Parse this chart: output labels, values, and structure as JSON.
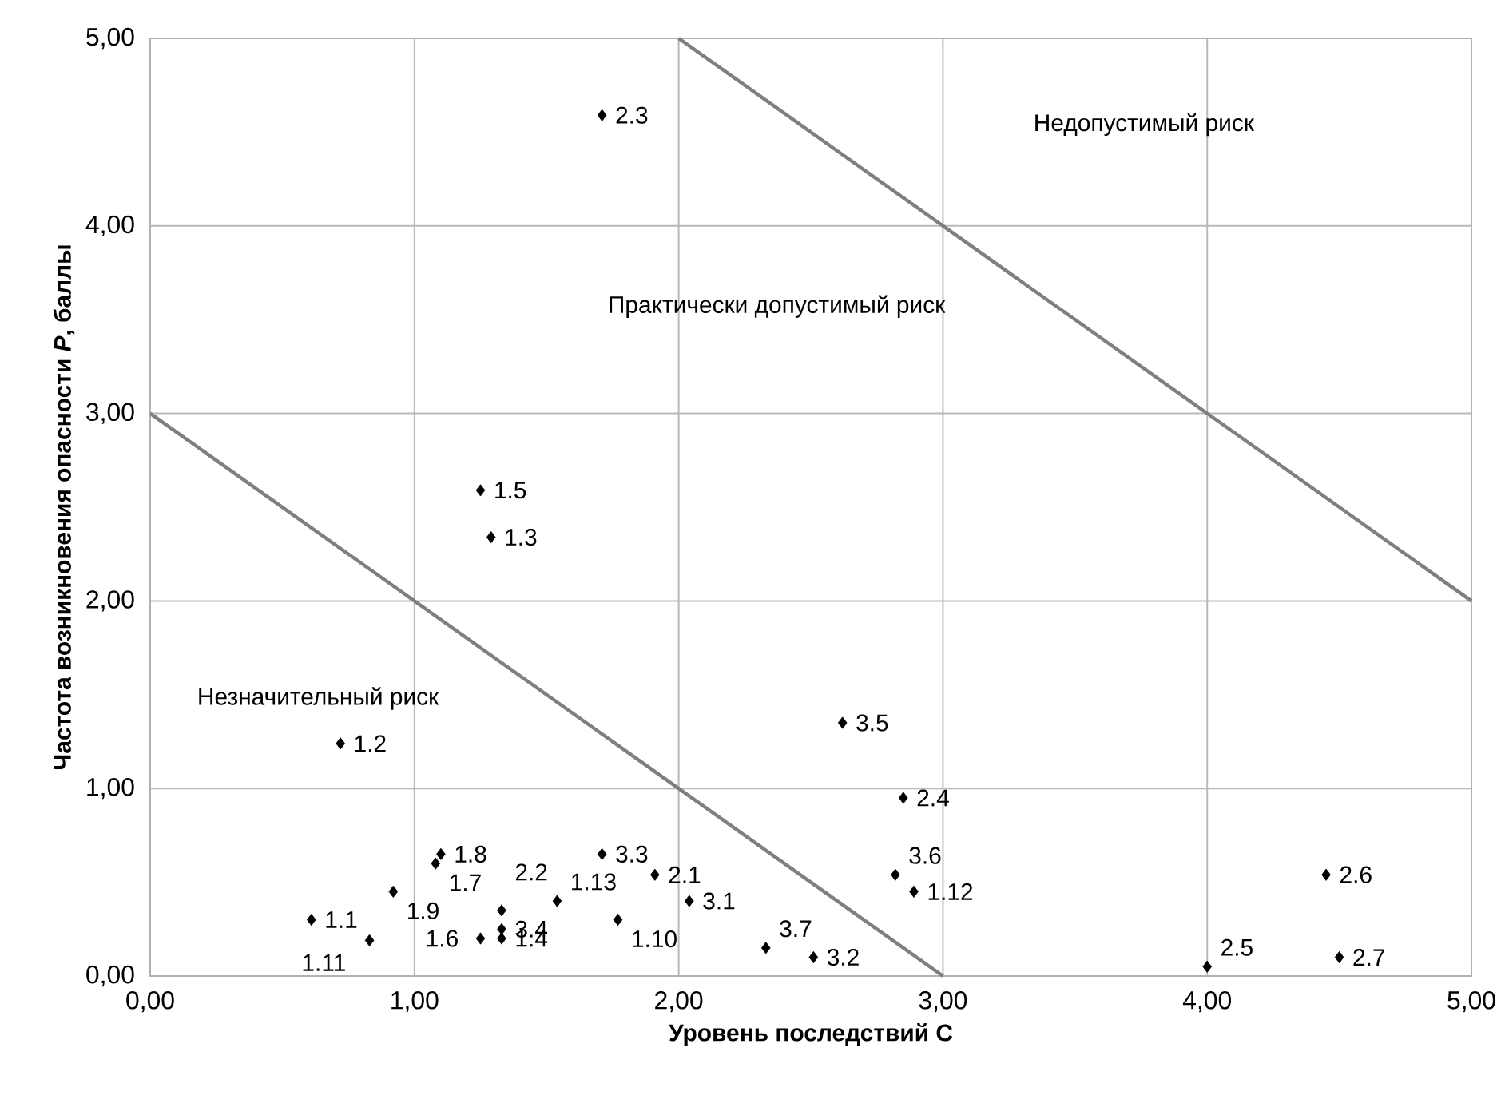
{
  "chart_data": {
    "type": "scatter",
    "xlabel": "Уровень последствий С",
    "ylabel": "Частота возникновения опасности *P*, баллы",
    "xlim": [
      0,
      5
    ],
    "ylim": [
      0,
      5
    ],
    "xticks": [
      {
        "value": 0,
        "label": "0,00"
      },
      {
        "value": 1,
        "label": "1,00"
      },
      {
        "value": 2,
        "label": "2,00"
      },
      {
        "value": 3,
        "label": "3,00"
      },
      {
        "value": 4,
        "label": "4,00"
      },
      {
        "value": 5,
        "label": "5,00"
      }
    ],
    "yticks": [
      {
        "value": 0,
        "label": "0,00"
      },
      {
        "value": 1,
        "label": "1,00"
      },
      {
        "value": 2,
        "label": "2,00"
      },
      {
        "value": 3,
        "label": "3,00"
      },
      {
        "value": 4,
        "label": "4,00"
      },
      {
        "value": 5,
        "label": "5,00"
      }
    ],
    "grid": true,
    "series": [
      {
        "color": "#000000",
        "marker": "diamond",
        "x": [
          0.61,
          0.72,
          1.29,
          1.33,
          1.25,
          1.25,
          1.08,
          1.1,
          0.92,
          1.77,
          0.83,
          2.89,
          1.54,
          1.91,
          1.33,
          1.71,
          2.85,
          4.0,
          4.45,
          4.5,
          2.04,
          2.51,
          1.71,
          1.33,
          2.62,
          2.82,
          2.33
        ],
        "values": [
          0.3,
          1.24,
          2.34,
          0.2,
          2.59,
          0.2,
          0.6,
          0.65,
          0.45,
          0.3,
          0.19,
          0.45,
          0.4,
          0.54,
          0.35,
          4.59,
          0.95,
          0.05,
          0.54,
          0.1,
          0.4,
          0.1,
          0.65,
          0.25,
          1.35,
          0.54,
          0.15
        ]
      },
      {
        "type": "line",
        "color": "#7f7f7f",
        "marker": "none",
        "x": [
          0,
          3
        ],
        "values": [
          3,
          0
        ]
      },
      {
        "type": "line",
        "color": "#7f7f7f",
        "marker": "none",
        "x": [
          2,
          5
        ],
        "values": [
          5,
          2
        ]
      }
    ],
    "annotations": [
      "Недопустимый риск",
      "Практически допустимый риск",
      "Незначительный риск",
      {
        "text": "1.1",
        "x": 0.61,
        "y": 0.3
      },
      {
        "text": "1.2",
        "x": 0.72,
        "y": 1.24
      },
      {
        "text": "1.3",
        "x": 1.29,
        "y": 2.34
      },
      {
        "text": "1.4",
        "x": 1.33,
        "y": 0.2
      },
      {
        "text": "1.5",
        "x": 1.25,
        "y": 2.59
      },
      {
        "text": "1.6",
        "x": 1.25,
        "y": 0.2
      },
      {
        "text": "1.7",
        "x": 1.08,
        "y": 0.6
      },
      {
        "text": "1.8",
        "x": 1.1,
        "y": 0.65
      },
      {
        "text": "1.9",
        "x": 0.92,
        "y": 0.45
      },
      {
        "text": "1.10",
        "x": 1.77,
        "y": 0.3
      },
      {
        "text": "1.11",
        "x": 0.83,
        "y": 0.19
      },
      {
        "text": "1.12",
        "x": 2.89,
        "y": 0.45
      },
      {
        "text": "1.13",
        "x": 1.54,
        "y": 0.4
      },
      {
        "text": "2.1",
        "x": 1.91,
        "y": 0.54
      },
      {
        "text": "2.2",
        "x": 1.33,
        "y": 0.35
      },
      {
        "text": "2.3",
        "x": 1.71,
        "y": 4.59
      },
      {
        "text": "2.4",
        "x": 2.85,
        "y": 0.95
      },
      {
        "text": "2.5",
        "x": 4.0,
        "y": 0.05
      },
      {
        "text": "2.6",
        "x": 4.45,
        "y": 0.54
      },
      {
        "text": "2.7",
        "x": 4.5,
        "y": 0.1
      },
      {
        "text": "3.1",
        "x": 2.04,
        "y": 0.4
      },
      {
        "text": "3.2",
        "x": 2.51,
        "y": 0.1
      },
      {
        "text": "3.3",
        "x": 1.71,
        "y": 0.65
      },
      {
        "text": "3.4",
        "x": 1.33,
        "y": 0.25
      },
      {
        "text": "3.5",
        "x": 2.62,
        "y": 1.35
      },
      {
        "text": "3.6",
        "x": 2.82,
        "y": 0.54
      },
      {
        "text": "3.7",
        "x": 2.33,
        "y": 0.15
      }
    ]
  }
}
